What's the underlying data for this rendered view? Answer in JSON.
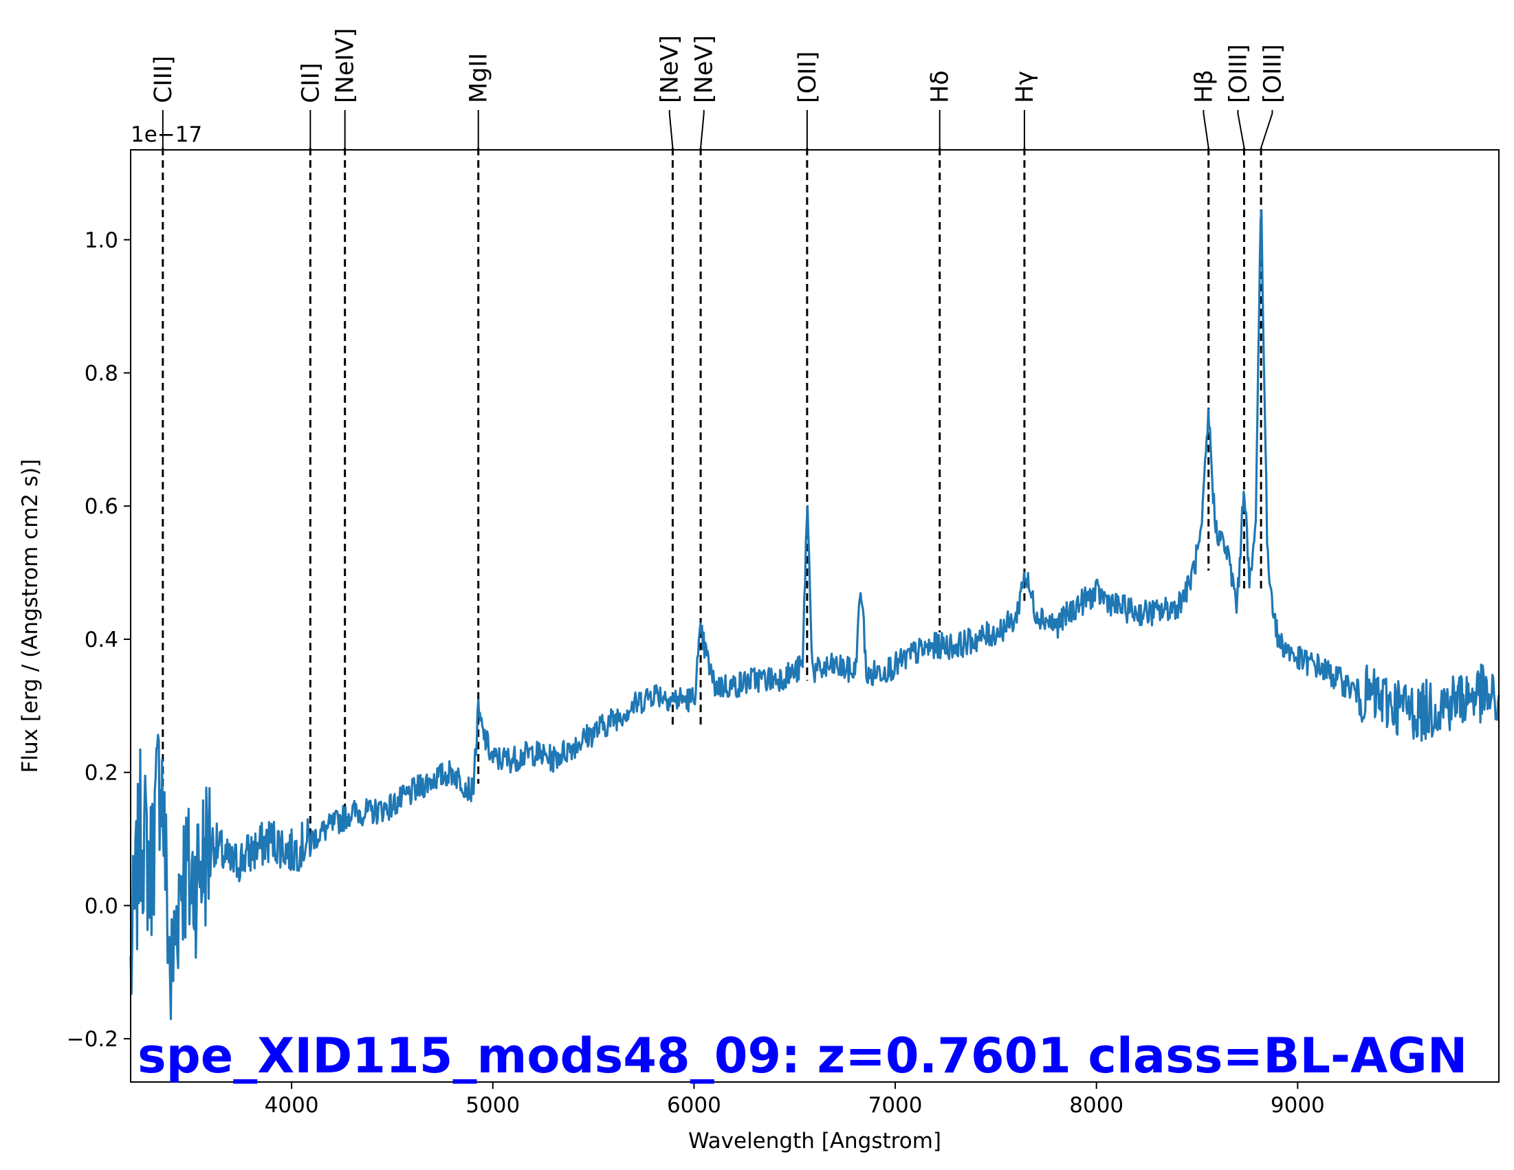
{
  "chart_data": {
    "type": "line",
    "xlabel": "Wavelength [Angstrom]",
    "ylabel": "Flux [erg / (Angstrom cm2 s)]",
    "y_scale_label": "1e−17",
    "xlim": [
      3200,
      10000
    ],
    "ylim": [
      -0.265,
      1.135
    ],
    "x_ticks": [
      4000,
      5000,
      6000,
      7000,
      8000,
      9000
    ],
    "y_ticks": [
      -0.2,
      0.0,
      0.2,
      0.4,
      0.6,
      0.8,
      1.0
    ],
    "y_tick_labels": [
      "−0.2",
      "0.0",
      "0.2",
      "0.4",
      "0.6",
      "0.8",
      "1.0"
    ],
    "grid": false,
    "line_color": "#1f77b4",
    "annotation": {
      "text": "spe_XID115_mods48_09: z=0.7601 class=BL-AGN",
      "color": "#0000ff"
    },
    "emission_lines": [
      {
        "label": "CIII]",
        "x": 3360
      },
      {
        "label": "CII]",
        "x": 4093
      },
      {
        "label": "[NeIV]",
        "x": 4265
      },
      {
        "label": "MgII",
        "x": 4928
      },
      {
        "label": "[NeV]",
        "x": 5894
      },
      {
        "label": "[NeV]",
        "x": 6033
      },
      {
        "label": "[OII]",
        "x": 6562
      },
      {
        "label": "Hδ",
        "x": 7221
      },
      {
        "label": "Hγ",
        "x": 7642
      },
      {
        "label": "Hβ",
        "x": 8557
      },
      {
        "label": "[OIII]",
        "x": 8734
      },
      {
        "label": "[OIII]",
        "x": 8818
      }
    ],
    "series": [
      {
        "x": [
          3200,
          3250,
          3300,
          3350,
          3400,
          3450,
          3500,
          3600,
          3700,
          3800,
          3900,
          4000,
          4100,
          4200,
          4300,
          4400,
          4500,
          4600,
          4700,
          4800,
          4900,
          4928,
          4950,
          5000,
          5100,
          5200,
          5300,
          5400,
          5500,
          5600,
          5700,
          5800,
          5900,
          6000,
          6033,
          6100,
          6200,
          6300,
          6400,
          6500,
          6540,
          6562,
          6590,
          6700,
          6800,
          6830,
          6860,
          6900,
          7000,
          7100,
          7200,
          7300,
          7400,
          7500,
          7600,
          7642,
          7700,
          7800,
          7900,
          8000,
          8100,
          8200,
          8300,
          8400,
          8460,
          8520,
          8557,
          8590,
          8650,
          8700,
          8734,
          8760,
          8790,
          8818,
          8850,
          8900,
          9000,
          9100,
          9200,
          9300,
          9400,
          9500,
          9600,
          9700,
          9800,
          9900,
          10000
        ],
        "y": [
          -0.1,
          0.12,
          0.05,
          0.22,
          -0.12,
          0.06,
          0.03,
          0.1,
          0.06,
          0.08,
          0.1,
          0.08,
          0.1,
          0.12,
          0.14,
          0.14,
          0.15,
          0.17,
          0.19,
          0.2,
          0.17,
          0.29,
          0.26,
          0.22,
          0.22,
          0.23,
          0.22,
          0.24,
          0.26,
          0.28,
          0.3,
          0.32,
          0.31,
          0.31,
          0.41,
          0.33,
          0.33,
          0.34,
          0.34,
          0.35,
          0.36,
          0.61,
          0.35,
          0.36,
          0.35,
          0.48,
          0.34,
          0.35,
          0.36,
          0.38,
          0.39,
          0.39,
          0.4,
          0.41,
          0.43,
          0.5,
          0.44,
          0.42,
          0.45,
          0.47,
          0.45,
          0.44,
          0.44,
          0.45,
          0.48,
          0.55,
          0.74,
          0.57,
          0.53,
          0.45,
          0.64,
          0.48,
          0.56,
          1.07,
          0.52,
          0.4,
          0.37,
          0.36,
          0.34,
          0.32,
          0.31,
          0.3,
          0.29,
          0.3,
          0.31,
          0.32,
          0.3
        ]
      }
    ]
  }
}
